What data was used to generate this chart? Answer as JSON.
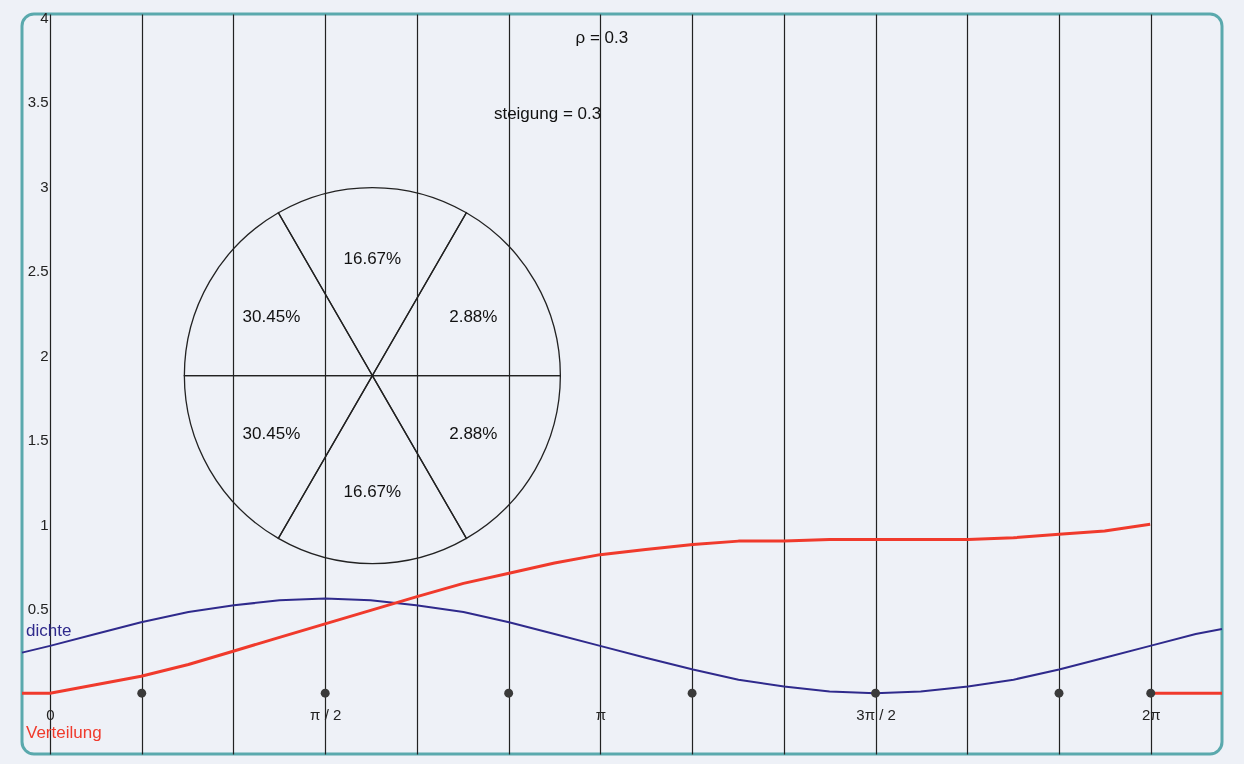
{
  "chart_data": [
    {
      "type": "line",
      "xlim": [
        -0.16,
        6.69
      ],
      "ylim": [
        -0.36,
        4.02
      ],
      "xticks": [
        {
          "value": 0,
          "label": "0"
        },
        {
          "value": 0.5236,
          "label": null
        },
        {
          "value": 1.0472,
          "label": null
        },
        {
          "value": 1.5708,
          "label": "π / 2"
        },
        {
          "value": 2.0944,
          "label": null
        },
        {
          "value": 2.618,
          "label": null
        },
        {
          "value": 3.1416,
          "label": "π"
        },
        {
          "value": 3.6652,
          "label": null
        },
        {
          "value": 4.1888,
          "label": null
        },
        {
          "value": 4.7124,
          "label": "3π / 2"
        },
        {
          "value": 5.236,
          "label": null
        },
        {
          "value": 5.7596,
          "label": null
        },
        {
          "value": 6.2832,
          "label": "2π"
        }
      ],
      "yticks": [
        0.5,
        1,
        1.5,
        2,
        2.5,
        3,
        3.5,
        4
      ],
      "grid": "x",
      "annotations": [
        "ρ = 0.3",
        "steigung = 0.3"
      ],
      "series": [
        {
          "name": "dichte",
          "type": "line",
          "color": "#2f2a8c",
          "x": [
            -0.16,
            0,
            0.26,
            0.52,
            0.79,
            1.05,
            1.31,
            1.57,
            1.83,
            2.09,
            2.36,
            2.62,
            2.88,
            3.14,
            3.4,
            3.67,
            3.93,
            4.19,
            4.45,
            4.71,
            4.97,
            5.24,
            5.5,
            5.76,
            6.02,
            6.28,
            6.54,
            6.69
          ],
          "values": [
            0.24,
            0.28,
            0.35,
            0.42,
            0.48,
            0.52,
            0.55,
            0.56,
            0.55,
            0.52,
            0.48,
            0.42,
            0.35,
            0.28,
            0.21,
            0.14,
            0.08,
            0.04,
            0.01,
            0.0,
            0.01,
            0.04,
            0.08,
            0.14,
            0.21,
            0.28,
            0.35,
            0.38
          ]
        },
        {
          "name": "Verteilung",
          "type": "line",
          "color": "#f03a2c",
          "x": [
            -0.16,
            0,
            0.26,
            0.52,
            0.79,
            1.05,
            1.31,
            1.57,
            1.83,
            2.09,
            2.36,
            2.62,
            2.88,
            3.14,
            3.4,
            3.67,
            3.93,
            4.19,
            4.45,
            4.71,
            4.97,
            5.24,
            5.5,
            5.76,
            6.02,
            6.28
          ],
          "values": [
            0,
            0,
            0.05,
            0.1,
            0.17,
            0.25,
            0.33,
            0.41,
            0.49,
            0.57,
            0.65,
            0.71,
            0.77,
            0.82,
            0.85,
            0.88,
            0.9,
            0.9,
            0.91,
            0.91,
            0.91,
            0.91,
            0.92,
            0.94,
            0.96,
            1.0
          ]
        },
        {
          "type": "line",
          "color": "#f03a2c",
          "x": [
            6.28,
            6.69
          ],
          "values": [
            0,
            0
          ]
        },
        {
          "type": "scatter",
          "color": "#3a3a3a",
          "x": [
            0.5236,
            1.5708,
            2.618,
            3.6652,
            4.7124,
            5.7596,
            6.2832
          ],
          "values": [
            0,
            0,
            0,
            0,
            0,
            0,
            0
          ]
        }
      ]
    },
    {
      "type": "other",
      "categories": [
        null,
        null,
        null,
        null,
        null,
        null
      ],
      "value_labels": [
        "16.67%",
        "2.88%",
        "2.88%",
        "16.67%",
        "30.45%",
        "30.45%"
      ]
    }
  ]
}
